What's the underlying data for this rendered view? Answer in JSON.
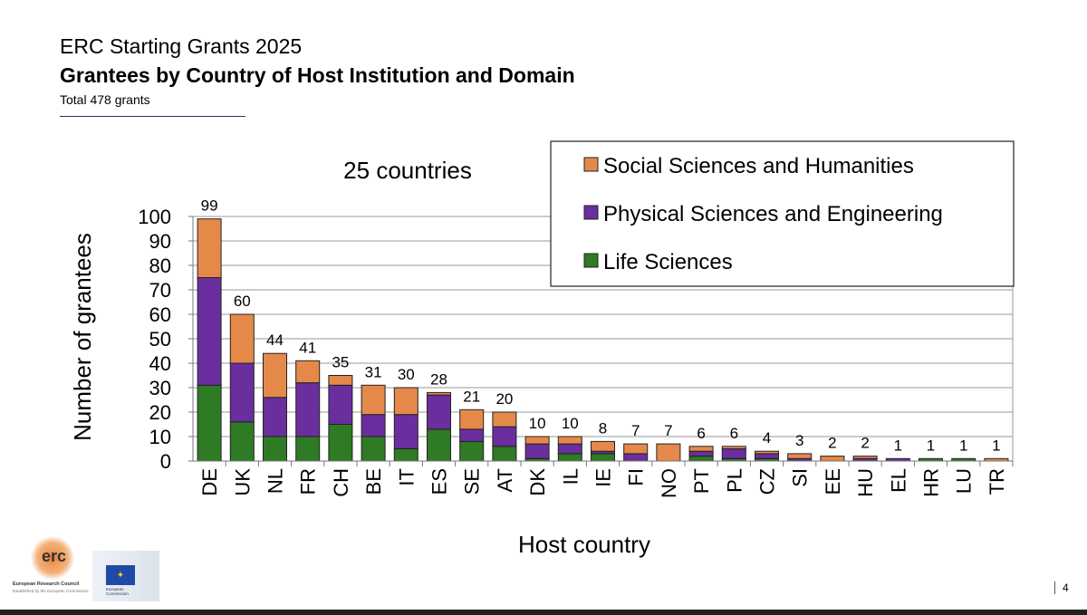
{
  "header": {
    "title": "ERC Starting Grants 2025",
    "subtitle": "Grantees by Country of Host Institution and Domain",
    "total": "Total 478 grants"
  },
  "page_number": "4",
  "logos": {
    "erc": "erc",
    "erc_name": "European Research Council",
    "erc_tagline": "Established by the European Commission",
    "ec": "European Commission"
  },
  "colors": {
    "ssh": "#e5894a",
    "pe": "#6a2e9e",
    "ls": "#2f7a24"
  },
  "chart_data": {
    "type": "bar",
    "stacked": true,
    "annotation": "25 countries",
    "xlabel": "Host country",
    "ylabel": "Number of grantees",
    "ylim": [
      0,
      100
    ],
    "yticks": [
      0,
      10,
      20,
      30,
      40,
      50,
      60,
      70,
      80,
      90,
      100
    ],
    "grid": true,
    "legend_placement": "top-right",
    "categories": [
      "DE",
      "UK",
      "NL",
      "FR",
      "CH",
      "BE",
      "IT",
      "ES",
      "SE",
      "AT",
      "DK",
      "IL",
      "IE",
      "FI",
      "NO",
      "PT",
      "PL",
      "CZ",
      "SI",
      "EE",
      "HU",
      "EL",
      "HR",
      "LU",
      "TR"
    ],
    "totals": [
      99,
      60,
      44,
      41,
      35,
      31,
      30,
      28,
      21,
      20,
      10,
      10,
      8,
      7,
      7,
      6,
      6,
      4,
      3,
      2,
      2,
      1,
      1,
      1,
      1
    ],
    "series": [
      {
        "name": "Life Sciences",
        "key": "ls",
        "values": [
          31,
          16,
          10,
          10,
          15,
          10,
          5,
          13,
          8,
          6,
          1,
          3,
          3,
          0,
          0,
          2,
          1,
          1,
          0,
          0,
          0,
          0,
          1,
          1,
          0
        ]
      },
      {
        "name": "Physical Sciences and Engineering",
        "key": "pe",
        "values": [
          44,
          24,
          16,
          22,
          16,
          9,
          14,
          14,
          5,
          8,
          6,
          4,
          1,
          3,
          0,
          2,
          4,
          2,
          1,
          0,
          1,
          1,
          0,
          0,
          0
        ]
      },
      {
        "name": "Social Sciences and Humanities",
        "key": "ssh",
        "values": [
          24,
          20,
          18,
          9,
          4,
          12,
          11,
          1,
          8,
          6,
          3,
          3,
          4,
          4,
          7,
          2,
          1,
          1,
          2,
          2,
          1,
          0,
          0,
          0,
          1
        ]
      }
    ]
  }
}
